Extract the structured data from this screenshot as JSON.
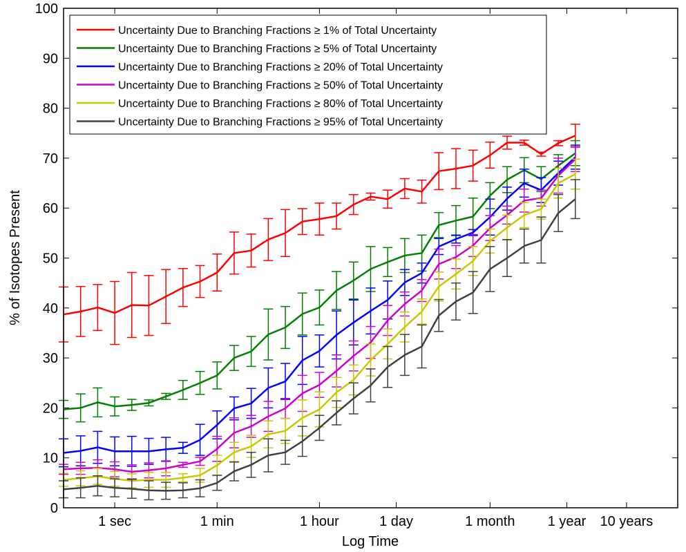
{
  "chart_data": {
    "type": "line",
    "title": "",
    "xlabel": "Log Time",
    "ylabel": "% of Isotopes Present",
    "ylim": [
      0,
      100
    ],
    "xlim": [
      0,
      36
    ],
    "yticks": [
      0,
      10,
      20,
      30,
      40,
      50,
      60,
      70,
      80,
      90,
      100
    ],
    "xticks": [
      {
        "x": 3,
        "label": "1 sec"
      },
      {
        "x": 9,
        "label": "1 min"
      },
      {
        "x": 15,
        "label": "1 hour"
      },
      {
        "x": 19.5,
        "label": "1 day"
      },
      {
        "x": 25,
        "label": "1 month"
      },
      {
        "x": 29.5,
        "label": "1 year"
      },
      {
        "x": 33,
        "label": "10 years"
      }
    ],
    "grid": false,
    "legend_position": "top-left",
    "x": [
      0,
      1,
      2,
      3,
      4,
      5,
      6,
      7,
      8,
      9,
      10,
      11,
      12,
      13,
      14,
      15,
      16,
      17,
      18,
      19,
      20,
      21,
      22,
      23,
      24,
      25,
      26,
      27,
      28,
      29,
      30,
      31,
      32,
      33,
      34,
      35,
      36
    ],
    "series": [
      {
        "name": "Uncertainty Due to Branching Fractions ≥ 1% of Total Uncertainty",
        "color": "#ff0000",
        "values": [
          38.7,
          39.3,
          40.1,
          39.0,
          40.6,
          40.5,
          42.3,
          44.1,
          45.3,
          47.1,
          51.0,
          51.5,
          53.7,
          55.0,
          57.3,
          57.8,
          58.4,
          60.7,
          62.3,
          61.8,
          63.9,
          63.3,
          67.4,
          67.9,
          68.5,
          70.6,
          73.1,
          73.1,
          70.8,
          73.0,
          74.5,
          null,
          null,
          null,
          null,
          null,
          null
        ],
        "errors": [
          5.5,
          5.0,
          4.6,
          6.3,
          6.5,
          6.0,
          5.4,
          3.8,
          3.2,
          3.7,
          4.2,
          3.3,
          4.2,
          4.7,
          2.6,
          3.2,
          2.6,
          2.0,
          0.7,
          1.8,
          2.0,
          2.3,
          3.7,
          4.0,
          3.1,
          2.6,
          1.3,
          0.5,
          0.4,
          0.5,
          2.3,
          null,
          null,
          null,
          null,
          null,
          null
        ]
      },
      {
        "name": "Uncertainty Due to Branching Fractions ≥ 5% of Total Uncertainty",
        "color": "#008000",
        "values": [
          19.7,
          20.0,
          21.1,
          20.3,
          20.6,
          21.0,
          22.3,
          23.6,
          25.0,
          26.5,
          30.0,
          31.3,
          34.7,
          36.1,
          38.8,
          40.1,
          43.5,
          45.5,
          47.8,
          49.2,
          50.5,
          51.0,
          56.6,
          57.5,
          58.3,
          62.5,
          65.7,
          67.6,
          65.8,
          68.5,
          71.0,
          null,
          null,
          null,
          null,
          null,
          null
        ],
        "errors": [
          1.8,
          2.8,
          2.9,
          1.9,
          1.1,
          0.6,
          0.6,
          1.9,
          2.3,
          2.7,
          2.5,
          3.0,
          5.1,
          4.2,
          4.2,
          3.5,
          3.8,
          3.7,
          4.5,
          2.9,
          3.4,
          3.6,
          2.5,
          3.0,
          3.7,
          2.6,
          2.6,
          2.5,
          2.5,
          2.2,
          2.5,
          null,
          null,
          null,
          null,
          null,
          null
        ]
      },
      {
        "name": "Uncertainty Due to Branching Fractions ≥ 20% of Total Uncertainty",
        "color": "#0000ff",
        "values": [
          11.0,
          11.4,
          12.1,
          11.3,
          11.3,
          11.3,
          11.7,
          12.0,
          13.6,
          16.6,
          19.9,
          20.9,
          24.0,
          25.3,
          29.5,
          31.4,
          34.6,
          37.1,
          39.4,
          41.6,
          45.1,
          47.0,
          52.3,
          53.8,
          55.1,
          58.2,
          61.9,
          65.0,
          63.6,
          67.0,
          70.2,
          null,
          null,
          null,
          null,
          null,
          null
        ],
        "errors": [
          2.8,
          3.0,
          3.2,
          2.9,
          3.0,
          2.6,
          2.4,
          1.1,
          3.1,
          2.8,
          2.3,
          3.0,
          4.0,
          3.6,
          4.8,
          3.2,
          4.8,
          4.5,
          4.6,
          3.8,
          2.6,
          2.0,
          1.6,
          0.8,
          0.6,
          3.6,
          2.3,
          2.8,
          2.5,
          2.4,
          2.4,
          null,
          null,
          null,
          null,
          null,
          null
        ]
      },
      {
        "name": "Uncertainty Due to Branching Fractions ≥ 50% of Total Uncertainty",
        "color": "#cc00cc",
        "values": [
          7.7,
          7.9,
          8.0,
          7.7,
          7.2,
          7.5,
          7.9,
          8.6,
          9.3,
          11.8,
          15.0,
          16.3,
          18.3,
          19.9,
          22.9,
          24.6,
          27.4,
          30.4,
          33.1,
          37.5,
          40.8,
          43.5,
          48.8,
          50.2,
          52.5,
          56.0,
          58.6,
          61.5,
          62.0,
          66.5,
          69.8,
          null,
          null,
          null,
          null,
          null,
          null
        ],
        "errors": [
          1.0,
          1.2,
          1.6,
          1.5,
          1.4,
          1.5,
          1.5,
          0.5,
          0.8,
          2.5,
          3.0,
          2.2,
          3.0,
          2.0,
          3.6,
          2.5,
          3.2,
          3.0,
          3.2,
          3.0,
          2.4,
          2.2,
          3.0,
          2.3,
          2.2,
          2.5,
          1.8,
          2.3,
          1.6,
          3.5,
          2.5,
          null,
          null,
          null,
          null,
          null,
          null
        ]
      },
      {
        "name": "Uncertainty Due to Branching Fractions ≥ 80% of Total Uncertainty",
        "color": "#c8c800",
        "values": [
          5.6,
          5.9,
          6.3,
          5.8,
          5.4,
          5.6,
          5.6,
          6.0,
          6.5,
          8.5,
          11.1,
          12.3,
          14.7,
          15.4,
          18.0,
          19.7,
          23.1,
          25.6,
          29.6,
          32.8,
          36.2,
          39.3,
          44.3,
          46.8,
          49.4,
          53.4,
          56.1,
          58.6,
          59.8,
          65.0,
          66.8,
          null,
          null,
          null,
          null,
          null,
          null
        ],
        "errors": [
          1.3,
          1.5,
          1.6,
          1.5,
          1.4,
          1.5,
          1.5,
          0.8,
          1.4,
          2.0,
          2.0,
          2.2,
          2.7,
          2.5,
          3.6,
          3.5,
          3.0,
          3.0,
          3.2,
          3.0,
          3.0,
          2.5,
          2.9,
          3.0,
          2.9,
          2.4,
          2.5,
          2.5,
          2.0,
          3.0,
          3.0,
          null,
          null,
          null,
          null,
          null,
          null
        ]
      },
      {
        "name": "Uncertainty Due to Branching Fractions ≥ 95% of Total Uncertainty",
        "color": "#404040",
        "values": [
          3.7,
          4.0,
          4.4,
          4.0,
          3.8,
          3.5,
          3.4,
          3.5,
          3.9,
          5.0,
          7.3,
          8.6,
          10.5,
          11.1,
          13.3,
          16.0,
          19.0,
          21.9,
          24.5,
          28.2,
          30.6,
          32.3,
          38.5,
          41.3,
          43.1,
          47.8,
          50.0,
          52.4,
          53.6,
          59.0,
          61.8,
          null,
          null,
          null,
          null,
          null,
          null
        ],
        "errors": [
          1.7,
          2.0,
          2.0,
          1.8,
          1.9,
          1.9,
          1.7,
          1.5,
          1.7,
          1.5,
          1.9,
          2.5,
          3.3,
          2.4,
          3.0,
          2.5,
          2.4,
          3.1,
          3.3,
          4.1,
          4.1,
          4.3,
          3.2,
          3.7,
          4.2,
          4.5,
          3.7,
          3.4,
          4.6,
          3.7,
          3.9,
          null,
          null,
          null,
          null,
          null,
          null
        ]
      }
    ]
  }
}
